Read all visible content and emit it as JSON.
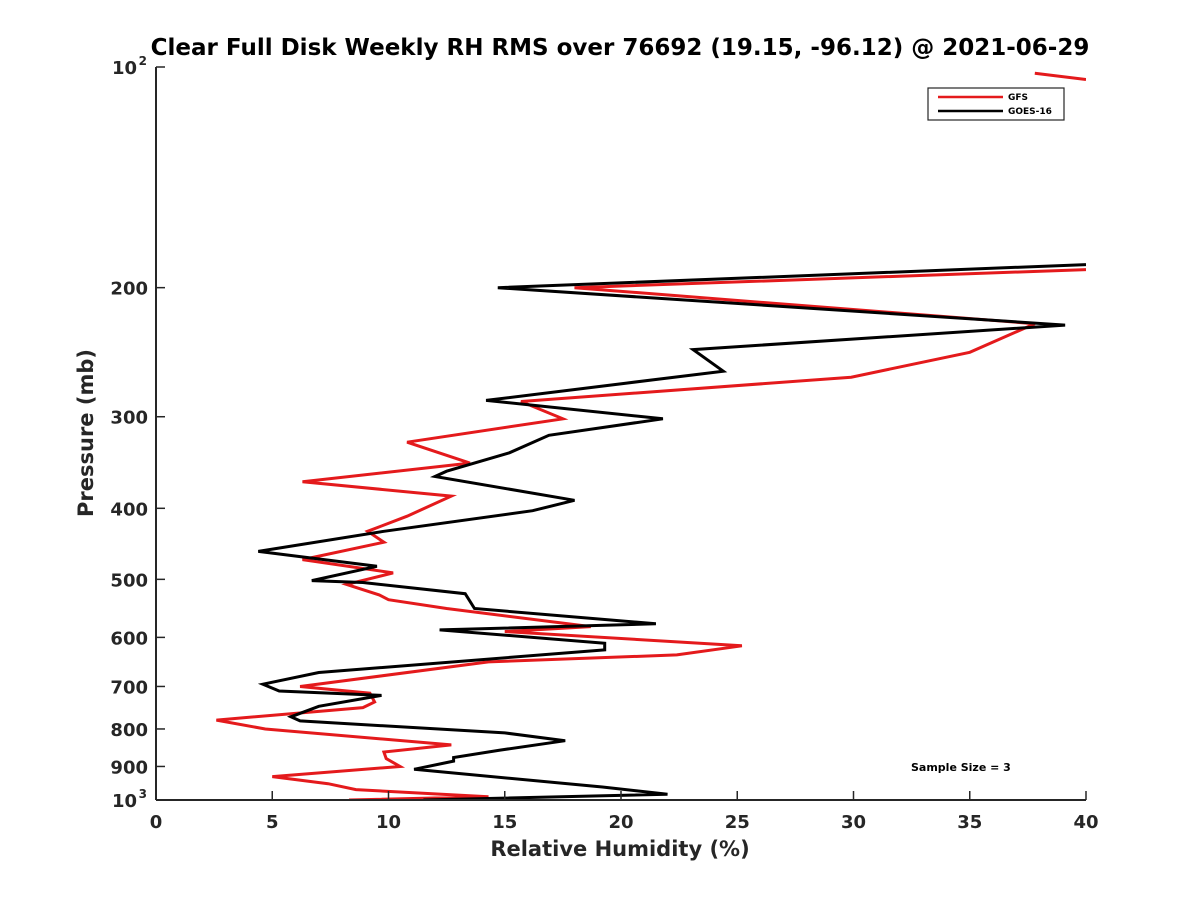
{
  "chart_data": {
    "type": "line",
    "title": "Clear Full Disk Weekly RH RMS over 76692 (19.15, -96.12) @ 2021-06-29",
    "xlabel": "Relative Humidity (%)",
    "ylabel": "Pressure (mb)",
    "xlim": [
      0,
      40
    ],
    "ylim": [
      100,
      1000
    ],
    "y_scale": "log",
    "y_reversed": true,
    "grid": false,
    "legend_position": "top-right",
    "x_ticks": [
      "0",
      "5",
      "10",
      "15",
      "20",
      "25",
      "30",
      "35",
      "40"
    ],
    "y_ticks": [
      {
        "value": 100,
        "base": "10",
        "exp": "2"
      },
      {
        "value": 200,
        "label": "200"
      },
      {
        "value": 300,
        "label": "300"
      },
      {
        "value": 400,
        "label": "400"
      },
      {
        "value": 500,
        "label": "500"
      },
      {
        "value": 600,
        "label": "600"
      },
      {
        "value": 700,
        "label": "700"
      },
      {
        "value": 800,
        "label": "800"
      },
      {
        "value": 900,
        "label": "900"
      },
      {
        "value": 1000,
        "base": "10",
        "exp": "3"
      }
    ],
    "annotation": "Sample Size = 3",
    "series": [
      {
        "name": "GFS",
        "color": "#e41a1c",
        "points": [
          [
            37.8,
            102
          ],
          [
            40.0,
            104
          ],
          [
            40.0,
            189
          ],
          [
            18.0,
            200
          ],
          [
            37.8,
            224
          ],
          [
            35.0,
            245
          ],
          [
            29.9,
            265
          ],
          [
            15.7,
            286
          ],
          [
            17.5,
            302
          ],
          [
            10.8,
            325
          ],
          [
            13.5,
            347
          ],
          [
            6.3,
            368
          ],
          [
            12.7,
            385
          ],
          [
            10.8,
            410
          ],
          [
            9.1,
            430
          ],
          [
            9.8,
            445
          ],
          [
            6.3,
            470
          ],
          [
            10.2,
            490
          ],
          [
            8.2,
            508
          ],
          [
            9.6,
            525
          ],
          [
            10.0,
            533
          ],
          [
            12.5,
            548
          ],
          [
            18.7,
            580
          ],
          [
            15.0,
            589
          ],
          [
            25.2,
            616
          ],
          [
            22.4,
            634
          ],
          [
            14.3,
            648
          ],
          [
            6.2,
            700
          ],
          [
            9.2,
            715
          ],
          [
            9.4,
            735
          ],
          [
            8.9,
            748
          ],
          [
            2.6,
            778
          ],
          [
            4.7,
            800
          ],
          [
            12.7,
            841
          ],
          [
            9.8,
            860
          ],
          [
            9.9,
            878
          ],
          [
            10.5,
            900
          ],
          [
            5.0,
            929
          ],
          [
            7.4,
            950
          ],
          [
            8.6,
            968
          ],
          [
            14.3,
            990
          ],
          [
            8.3,
            1000
          ]
        ]
      },
      {
        "name": "GOES-16",
        "color": "#000000",
        "points": [
          [
            40.0,
            186
          ],
          [
            14.7,
            200
          ],
          [
            39.1,
            225
          ],
          [
            23.1,
            243
          ],
          [
            24.4,
            260
          ],
          [
            14.2,
            285
          ],
          [
            21.8,
            302
          ],
          [
            16.9,
            318
          ],
          [
            15.2,
            336
          ],
          [
            12.5,
            356
          ],
          [
            12.0,
            362
          ],
          [
            18.0,
            390
          ],
          [
            16.2,
            403
          ],
          [
            9.8,
            430
          ],
          [
            4.4,
            458
          ],
          [
            9.5,
            480
          ],
          [
            6.7,
            502
          ],
          [
            8.9,
            505
          ],
          [
            13.3,
            523
          ],
          [
            13.7,
            548
          ],
          [
            21.5,
            575
          ],
          [
            12.2,
            586
          ],
          [
            19.3,
            611
          ],
          [
            19.3,
            624
          ],
          [
            7.0,
            670
          ],
          [
            4.6,
            695
          ],
          [
            5.3,
            710
          ],
          [
            9.7,
            720
          ],
          [
            7.0,
            745
          ],
          [
            5.8,
            770
          ],
          [
            6.2,
            780
          ],
          [
            15.0,
            810
          ],
          [
            17.6,
            830
          ],
          [
            14.8,
            855
          ],
          [
            12.8,
            875
          ],
          [
            12.8,
            885
          ],
          [
            11.1,
            908
          ],
          [
            19.2,
            960
          ],
          [
            22.0,
            982
          ],
          [
            11.5,
            1000
          ]
        ]
      }
    ]
  }
}
